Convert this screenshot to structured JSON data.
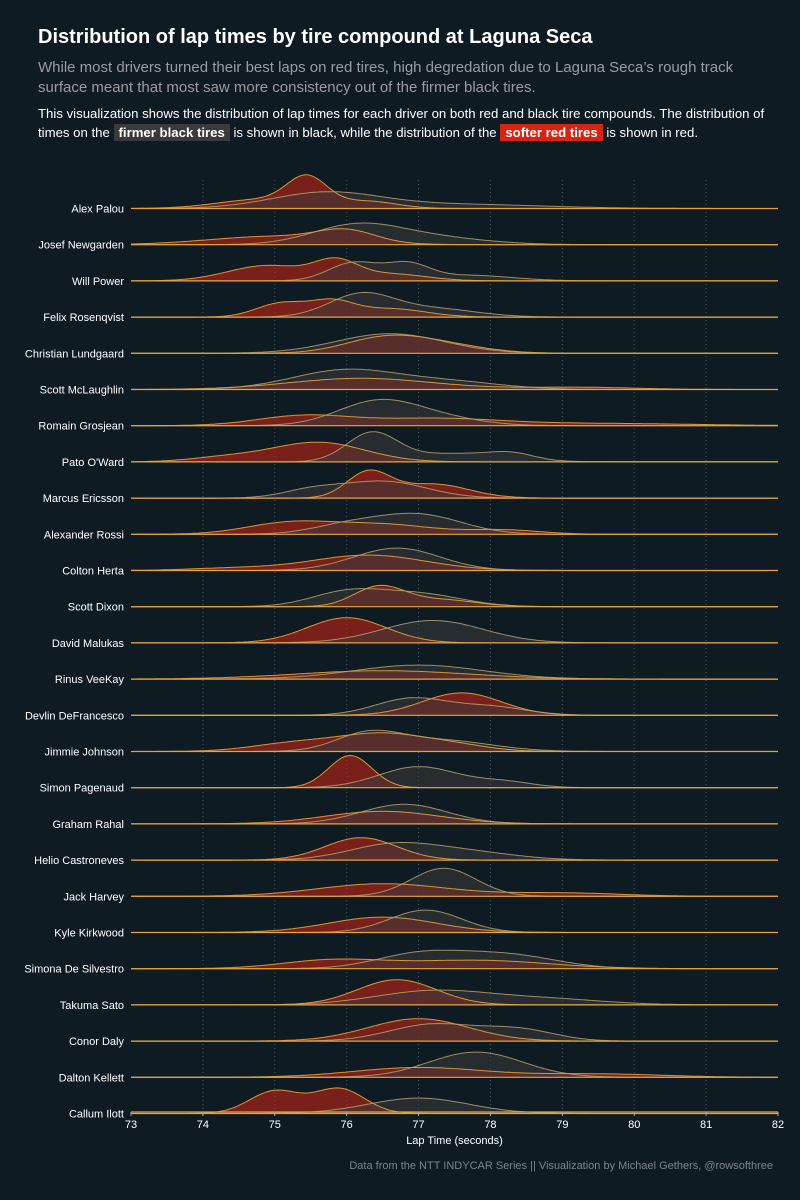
{
  "title": "Distribution of lap times by tire compound at Laguna Seca",
  "subtitle": "While most drivers turned their best laps on red tires, high degredation due to Laguna Seca’s rough track surface meant that most saw more consistency out of the firmer black tires.",
  "description": {
    "part1": "This visualization shows the distribution of lap times for each driver on both red and black tire compounds.  The distribution of times on the",
    "black_label": "firmer black tires",
    "part2": "is shown in black, while the distribution of the",
    "red_label": "softer red tires",
    "part3": "is shown in red."
  },
  "footer": "Data from the NTT INDYCAR Series || Visualization by Michael Gethers, @rowsofthree",
  "colors": {
    "background": "#0e1b22",
    "red_fill": "#d42514",
    "black_fill": "#3a3a3a",
    "outline": "#e8a33c",
    "axis": "#e8a33c",
    "grid": "#4a5a66"
  },
  "chart_data": {
    "type": "ridgeline-density",
    "xlabel": "Lap Time (seconds)",
    "xlim": [
      73,
      82
    ],
    "xticks": [
      73,
      74,
      75,
      76,
      77,
      78,
      79,
      80,
      81,
      82
    ],
    "series_names": [
      "black",
      "red"
    ],
    "drivers": [
      {
        "name": "Alex Palou",
        "black": [
          [
            75.7,
            0.75,
            0.55
          ],
          [
            77.5,
            1.2,
            0.15
          ]
        ],
        "red": [
          [
            75.45,
            0.28,
            1.0
          ],
          [
            74.8,
            0.6,
            0.32
          ],
          [
            76.3,
            0.4,
            0.25
          ]
        ]
      },
      {
        "name": "Josef Newgarden",
        "black": [
          [
            76.1,
            0.6,
            0.6
          ],
          [
            77.0,
            0.8,
            0.3
          ]
        ],
        "red": [
          [
            75.0,
            0.9,
            0.3
          ],
          [
            76.0,
            0.4,
            0.4
          ]
        ]
      },
      {
        "name": "Will Power",
        "black": [
          [
            76.1,
            0.35,
            0.65
          ],
          [
            76.85,
            0.3,
            0.55
          ],
          [
            77.7,
            0.6,
            0.2
          ]
        ],
        "red": [
          [
            74.9,
            0.55,
            0.55
          ],
          [
            75.85,
            0.3,
            0.62
          ],
          [
            76.6,
            0.5,
            0.25
          ]
        ]
      },
      {
        "name": "Felix Rosenqvist",
        "black": [
          [
            76.2,
            0.45,
            0.8
          ],
          [
            77.2,
            0.6,
            0.3
          ]
        ],
        "red": [
          [
            75.1,
            0.35,
            0.5
          ],
          [
            75.8,
            0.3,
            0.5
          ],
          [
            76.6,
            0.5,
            0.3
          ]
        ]
      },
      {
        "name": "Christian Lundgaard",
        "black": [
          [
            76.6,
            0.75,
            0.7
          ]
        ],
        "red": [
          [
            76.5,
            0.55,
            0.5
          ],
          [
            77.3,
            0.6,
            0.3
          ]
        ]
      },
      {
        "name": "Scott McLaughlin",
        "black": [
          [
            76.0,
            0.75,
            0.7
          ],
          [
            77.5,
            0.7,
            0.25
          ]
        ],
        "red": [
          [
            76.2,
            1.0,
            0.4
          ],
          [
            79.2,
            0.8,
            0.08
          ]
        ]
      },
      {
        "name": "Romain Grosjean",
        "black": [
          [
            76.4,
            0.55,
            0.8
          ],
          [
            77.2,
            0.6,
            0.3
          ]
        ],
        "red": [
          [
            75.4,
            0.65,
            0.35
          ],
          [
            77.2,
            0.9,
            0.25
          ],
          [
            79.5,
            1.3,
            0.08
          ]
        ]
      },
      {
        "name": "Pato O'Ward",
        "black": [
          [
            76.35,
            0.35,
            1.0
          ],
          [
            77.5,
            0.7,
            0.3
          ],
          [
            78.3,
            0.3,
            0.2
          ]
        ],
        "red": [
          [
            75.6,
            0.65,
            0.7
          ],
          [
            74.3,
            0.5,
            0.15
          ]
        ]
      },
      {
        "name": "Marcus Ericsson",
        "black": [
          [
            76.5,
            0.6,
            0.6
          ],
          [
            75.5,
            0.4,
            0.25
          ]
        ],
        "red": [
          [
            76.3,
            0.3,
            0.9
          ],
          [
            77.2,
            0.5,
            0.5
          ]
        ]
      },
      {
        "name": "Alexander Rossi",
        "black": [
          [
            77.0,
            0.6,
            0.7
          ],
          [
            76.0,
            0.5,
            0.3
          ]
        ],
        "red": [
          [
            75.2,
            0.6,
            0.4
          ],
          [
            76.5,
            0.7,
            0.35
          ],
          [
            78.2,
            0.5,
            0.15
          ]
        ]
      },
      {
        "name": "Colton Herta",
        "black": [
          [
            76.7,
            0.6,
            0.8
          ]
        ],
        "red": [
          [
            76.3,
            0.8,
            0.55
          ],
          [
            74.4,
            0.6,
            0.08
          ]
        ]
      },
      {
        "name": "Scott Dixon",
        "black": [
          [
            76.0,
            0.5,
            0.5
          ],
          [
            77.0,
            0.6,
            0.45
          ]
        ],
        "red": [
          [
            76.45,
            0.35,
            0.7
          ],
          [
            77.3,
            0.5,
            0.25
          ]
        ]
      },
      {
        "name": "David Malukas",
        "black": [
          [
            77.2,
            0.7,
            0.8
          ]
        ],
        "red": [
          [
            76.0,
            0.55,
            0.9
          ]
        ]
      },
      {
        "name": "Rinus VeeKay",
        "black": [
          [
            77.0,
            0.9,
            0.5
          ]
        ],
        "red": [
          [
            76.5,
            1.2,
            0.3
          ]
        ]
      },
      {
        "name": "Devlin DeFrancesco",
        "black": [
          [
            76.9,
            0.5,
            0.6
          ],
          [
            78.0,
            0.5,
            0.3
          ]
        ],
        "red": [
          [
            77.6,
            0.55,
            0.8
          ]
        ]
      },
      {
        "name": "Jimmie Johnson",
        "black": [
          [
            76.3,
            0.45,
            0.6
          ],
          [
            77.3,
            0.7,
            0.4
          ]
        ],
        "red": [
          [
            75.3,
            0.6,
            0.3
          ],
          [
            76.5,
            0.6,
            0.6
          ],
          [
            77.5,
            0.5,
            0.2
          ]
        ]
      },
      {
        "name": "Simon Pagenaud",
        "black": [
          [
            77.0,
            0.55,
            0.75
          ],
          [
            78.2,
            0.4,
            0.2
          ]
        ],
        "red": [
          [
            76.05,
            0.3,
            1.15
          ]
        ]
      },
      {
        "name": "Graham Rahal",
        "black": [
          [
            76.8,
            0.6,
            0.7
          ]
        ],
        "red": [
          [
            76.5,
            0.8,
            0.45
          ]
        ]
      },
      {
        "name": "Helio Castroneves",
        "black": [
          [
            76.6,
            0.6,
            0.5
          ],
          [
            77.6,
            0.7,
            0.3
          ]
        ],
        "red": [
          [
            76.2,
            0.5,
            0.8
          ]
        ]
      },
      {
        "name": "Jack Harvey",
        "black": [
          [
            77.35,
            0.45,
            1.0
          ]
        ],
        "red": [
          [
            76.5,
            0.9,
            0.45
          ],
          [
            79.0,
            0.8,
            0.12
          ]
        ]
      },
      {
        "name": "Kyle Kirkwood",
        "black": [
          [
            77.1,
            0.5,
            0.8
          ]
        ],
        "red": [
          [
            76.5,
            0.75,
            0.55
          ]
        ]
      },
      {
        "name": "Simona De Silvestro",
        "black": [
          [
            77.0,
            0.6,
            0.5
          ],
          [
            78.2,
            0.7,
            0.5
          ]
        ],
        "red": [
          [
            75.8,
            0.7,
            0.3
          ],
          [
            77.8,
            1.0,
            0.3
          ]
        ]
      },
      {
        "name": "Takuma Sato",
        "black": [
          [
            77.2,
            0.8,
            0.5
          ],
          [
            78.8,
            0.8,
            0.2
          ]
        ],
        "red": [
          [
            76.7,
            0.55,
            0.9
          ]
        ]
      },
      {
        "name": "Conor Daly",
        "black": [
          [
            77.2,
            0.6,
            0.6
          ],
          [
            78.4,
            0.5,
            0.4
          ]
        ],
        "red": [
          [
            77.0,
            0.7,
            0.8
          ]
        ]
      },
      {
        "name": "Dalton Kellett",
        "black": [
          [
            77.8,
            0.65,
            0.9
          ]
        ],
        "red": [
          [
            77.0,
            0.9,
            0.35
          ],
          [
            79.5,
            0.9,
            0.12
          ]
        ]
      },
      {
        "name": "Callum Ilott",
        "black": [
          [
            77.0,
            0.7,
            0.55
          ]
        ],
        "red": [
          [
            75.0,
            0.35,
            0.8
          ],
          [
            75.9,
            0.35,
            0.88
          ]
        ]
      }
    ]
  }
}
